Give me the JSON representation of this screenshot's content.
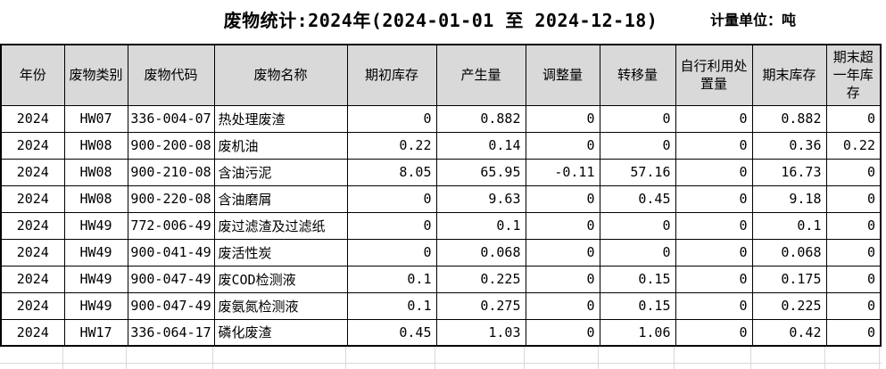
{
  "header": {
    "title": "废物统计:2024年(2024-01-01 至 2024-12-18)",
    "unit_label": "计量单位：吨"
  },
  "table": {
    "columns": [
      "年份",
      "废物类别",
      "废物代码",
      "废物名称",
      "期初库存",
      "产生量",
      "调整量",
      "转移量",
      "自行利用处置量",
      "期末库存",
      "期末超一年库存"
    ],
    "rows": [
      [
        "2024",
        "HW07",
        "336-004-07",
        "热处理废渣",
        "0",
        "0.882",
        "0",
        "0",
        "0",
        "0.882",
        "0"
      ],
      [
        "2024",
        "HW08",
        "900-200-08",
        "废机油",
        "0.22",
        "0.14",
        "0",
        "0",
        "0",
        "0.36",
        "0.22"
      ],
      [
        "2024",
        "HW08",
        "900-210-08",
        "含油污泥",
        "8.05",
        "65.95",
        "-0.11",
        "57.16",
        "0",
        "16.73",
        "0"
      ],
      [
        "2024",
        "HW08",
        "900-220-08",
        "含油磨屑",
        "0",
        "9.63",
        "0",
        "0.45",
        "0",
        "9.18",
        "0"
      ],
      [
        "2024",
        "HW49",
        "772-006-49",
        "废过滤渣及过滤纸",
        "0",
        "0.1",
        "0",
        "0",
        "0",
        "0.1",
        "0"
      ],
      [
        "2024",
        "HW49",
        "900-041-49",
        "废活性炭",
        "0",
        "0.068",
        "0",
        "0",
        "0",
        "0.068",
        "0"
      ],
      [
        "2024",
        "HW49",
        "900-047-49",
        "废COD检测液",
        "0.1",
        "0.225",
        "0",
        "0.15",
        "0",
        "0.175",
        "0"
      ],
      [
        "2024",
        "HW49",
        "900-047-49",
        "废氨氮检测液",
        "0.1",
        "0.275",
        "0",
        "0.15",
        "0",
        "0.225",
        "0"
      ],
      [
        "2024",
        "HW17",
        "336-064-17",
        "磷化废渣",
        "0.45",
        "1.03",
        "0",
        "1.06",
        "0",
        "0.42",
        "0"
      ]
    ]
  },
  "colors": {
    "header_bg": "#d9d9d9",
    "border": "#000000",
    "gridline": "#d9d9d9"
  }
}
